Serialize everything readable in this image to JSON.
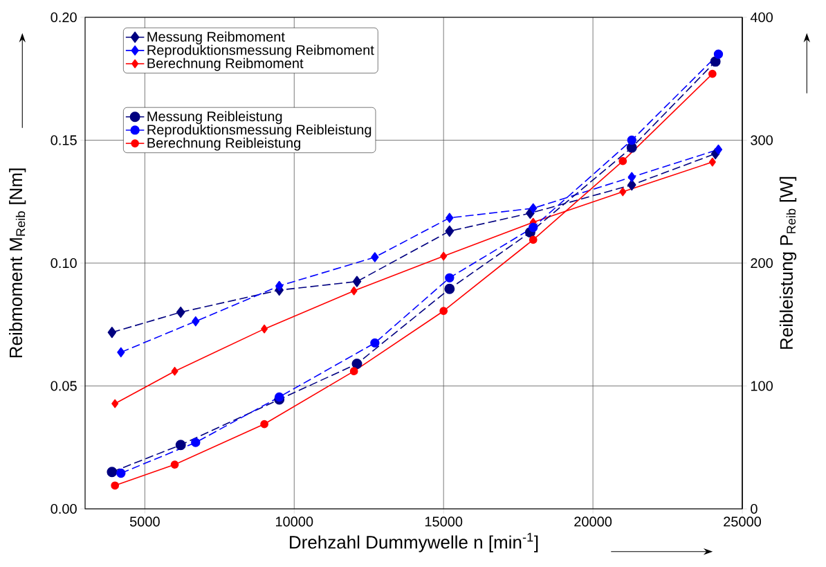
{
  "chart_data": {
    "type": "line",
    "xlabel": "Drehzahl Dummywelle n [min$^{-1}$]",
    "ylabel": "Reibmoment M$_{Reib}$ [Nm]",
    "y2label": "Reibleistung P$_{Reib}$ [W]",
    "xlim": [
      3000,
      25000
    ],
    "ylim": [
      0,
      0.2
    ],
    "y2lim": [
      0,
      400
    ],
    "xticks": [
      5000,
      10000,
      15000,
      20000,
      25000
    ],
    "yticks": [
      {
        "value": 0,
        "label": "0.00"
      },
      {
        "value": 0.05,
        "label": "0.05"
      },
      {
        "value": 0.1,
        "label": "0.10"
      },
      {
        "value": 0.15,
        "label": "0.15"
      },
      {
        "value": 0.2,
        "label": "0.20"
      }
    ],
    "y2ticks": [
      0,
      100,
      200,
      300,
      400
    ],
    "grid": true,
    "legend": "top left",
    "series": [
      {
        "name": "Messung Reibmoment",
        "color": "#000080",
        "marker": "diamond",
        "line_style": "dashed",
        "axis": "y",
        "x": [
          3900,
          6200,
          9500,
          12100,
          15200,
          17900,
          21300,
          24100
        ],
        "values": [
          0.0718,
          0.08,
          0.089,
          0.0925,
          0.113,
          0.1203,
          0.1318,
          0.1445
        ]
      },
      {
        "name": "Reproduktionsmessung Reibmoment",
        "color": "#0000ff",
        "marker": "diamond",
        "line_style": "dashed",
        "axis": "y",
        "x": [
          4200,
          6700,
          9500,
          12700,
          15200,
          18000,
          21300,
          24200
        ],
        "values": [
          0.0637,
          0.0763,
          0.0907,
          0.1024,
          0.1184,
          0.1223,
          0.135,
          0.1462
        ]
      },
      {
        "name": "Berechnung Reibmoment",
        "color": "#ff0000",
        "marker": "diamond",
        "line_style": "solid",
        "axis": "y",
        "x": [
          4000,
          6000,
          9000,
          12000,
          15000,
          18000,
          21000,
          24000
        ],
        "values": [
          0.0428,
          0.056,
          0.0732,
          0.0887,
          0.1028,
          0.1166,
          0.129,
          0.1411
        ]
      },
      {
        "name": "Messung Reibleistung",
        "color": "#000080",
        "marker": "circle",
        "line_style": "dashed",
        "axis": "y2",
        "x": [
          3900,
          6200,
          9500,
          12100,
          15200,
          17900,
          21300,
          24100
        ],
        "values": [
          30,
          52,
          89,
          118,
          179,
          225,
          294,
          364
        ]
      },
      {
        "name": "Reproduktionsmessung Reibleistung",
        "color": "#0000ff",
        "marker": "circle",
        "line_style": "dashed",
        "axis": "y2",
        "x": [
          4200,
          6700,
          9500,
          12700,
          15200,
          18000,
          21300,
          24200
        ],
        "values": [
          29,
          54,
          91,
          135,
          188,
          229,
          300,
          370
        ]
      },
      {
        "name": "Berechnung Reibleistung",
        "color": "#ff0000",
        "marker": "circle",
        "line_style": "solid",
        "axis": "y2",
        "x": [
          4000,
          6000,
          9000,
          12000,
          15000,
          18000,
          21000,
          24000
        ],
        "values": [
          19,
          36,
          69,
          112,
          161,
          219,
          283,
          354
        ]
      }
    ]
  }
}
